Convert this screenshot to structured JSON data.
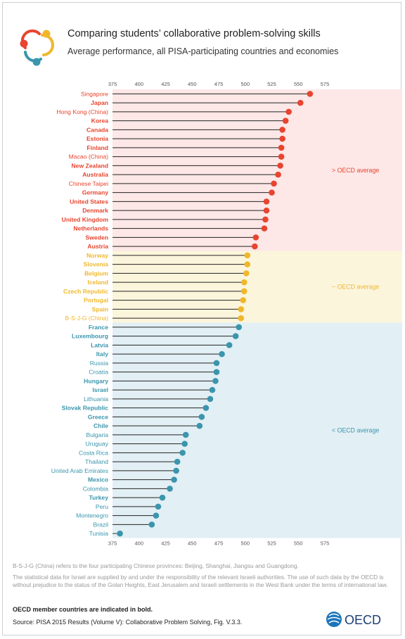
{
  "title": "Comparing students’ collaborative problem-solving skills",
  "subtitle": "Average performance, all PISA-participating countries and economies",
  "footnotes": {
    "bsjg": "B-S-J-G (China) refers to the four participating Chinese provinces: Beijing, Shanghai, Jiangsu and Guangdong.",
    "israel": "The statistical data for Israel are supplied by and under the responsibility of the relevant Israeli authorities. The use of such data by the OECD is without prejudice to the status of the Golan Heights, East Jerusalem and Israeli settlements in the West Bank under the terms of international law.",
    "oecd_members": "OECD member countries are indicated in bold.",
    "source": "Source: PISA 2015 Results (Volume V): Collaborative Problem Solving, Fig. V.3.3."
  },
  "brand": {
    "name": "OECD"
  },
  "colors": {
    "above": "#e8442f",
    "similar": "#f0b72b",
    "below": "#3a95ad",
    "above_bg": "#fde7e7",
    "similar_bg": "#fbf5dc",
    "below_bg": "#e2eff4",
    "logo_ring_1": "#e8442f",
    "logo_ring_2": "#f0b72b",
    "logo_ring_3": "#3a95ad"
  },
  "chart_data": {
    "type": "lollipop",
    "xlim": [
      375,
      575
    ],
    "xticks": [
      375,
      400,
      425,
      450,
      475,
      500,
      525,
      550,
      575
    ],
    "groups": [
      {
        "key": "above",
        "label": "> OECD average"
      },
      {
        "key": "similar",
        "label": "~ OECD average"
      },
      {
        "key": "below",
        "label": "< OECD average"
      }
    ],
    "rows": [
      {
        "name": "Singapore",
        "value": 561,
        "oecd": false,
        "group": "above"
      },
      {
        "name": "Japan",
        "value": 552,
        "oecd": true,
        "group": "above"
      },
      {
        "name": "Hong Kong (China)",
        "value": 541,
        "oecd": false,
        "group": "above"
      },
      {
        "name": "Korea",
        "value": 538,
        "oecd": true,
        "group": "above"
      },
      {
        "name": "Canada",
        "value": 535,
        "oecd": true,
        "group": "above"
      },
      {
        "name": "Estonia",
        "value": 535,
        "oecd": true,
        "group": "above"
      },
      {
        "name": "Finland",
        "value": 534,
        "oecd": true,
        "group": "above"
      },
      {
        "name": "Macao (China)",
        "value": 534,
        "oecd": false,
        "group": "above"
      },
      {
        "name": "New Zealand",
        "value": 533,
        "oecd": true,
        "group": "above"
      },
      {
        "name": "Australia",
        "value": 531,
        "oecd": true,
        "group": "above"
      },
      {
        "name": "Chinese Taipei",
        "value": 527,
        "oecd": false,
        "group": "above"
      },
      {
        "name": "Germany",
        "value": 525,
        "oecd": true,
        "group": "above"
      },
      {
        "name": "United States",
        "value": 520,
        "oecd": true,
        "group": "above"
      },
      {
        "name": "Denmark",
        "value": 520,
        "oecd": true,
        "group": "above"
      },
      {
        "name": "United Kingdom",
        "value": 519,
        "oecd": true,
        "group": "above"
      },
      {
        "name": "Netherlands",
        "value": 518,
        "oecd": true,
        "group": "above"
      },
      {
        "name": "Sweden",
        "value": 510,
        "oecd": true,
        "group": "above"
      },
      {
        "name": "Austria",
        "value": 509,
        "oecd": true,
        "group": "above"
      },
      {
        "name": "Norway",
        "value": 502,
        "oecd": true,
        "group": "similar"
      },
      {
        "name": "Slovenia",
        "value": 502,
        "oecd": true,
        "group": "similar"
      },
      {
        "name": "Belgium",
        "value": 501,
        "oecd": true,
        "group": "similar"
      },
      {
        "name": "Iceland",
        "value": 499,
        "oecd": true,
        "group": "similar"
      },
      {
        "name": "Czech Republic",
        "value": 499,
        "oecd": true,
        "group": "similar"
      },
      {
        "name": "Portugal",
        "value": 498,
        "oecd": true,
        "group": "similar"
      },
      {
        "name": "Spain",
        "value": 496,
        "oecd": true,
        "group": "similar"
      },
      {
        "name": "B-S-J-G (China)",
        "value": 496,
        "oecd": false,
        "group": "similar"
      },
      {
        "name": "France",
        "value": 494,
        "oecd": true,
        "group": "below"
      },
      {
        "name": "Luxembourg",
        "value": 491,
        "oecd": true,
        "group": "below"
      },
      {
        "name": "Latvia",
        "value": 485,
        "oecd": true,
        "group": "below"
      },
      {
        "name": "Italy",
        "value": 478,
        "oecd": true,
        "group": "below"
      },
      {
        "name": "Russia",
        "value": 473,
        "oecd": false,
        "group": "below"
      },
      {
        "name": "Croatia",
        "value": 473,
        "oecd": false,
        "group": "below"
      },
      {
        "name": "Hungary",
        "value": 472,
        "oecd": true,
        "group": "below"
      },
      {
        "name": "Israel",
        "value": 469,
        "oecd": true,
        "group": "below"
      },
      {
        "name": "Lithuania",
        "value": 467,
        "oecd": false,
        "group": "below"
      },
      {
        "name": "Slovak Republic",
        "value": 463,
        "oecd": true,
        "group": "below"
      },
      {
        "name": "Greece",
        "value": 459,
        "oecd": true,
        "group": "below"
      },
      {
        "name": "Chile",
        "value": 457,
        "oecd": true,
        "group": "below"
      },
      {
        "name": "Bulgaria",
        "value": 444,
        "oecd": false,
        "group": "below"
      },
      {
        "name": "Uruguay",
        "value": 443,
        "oecd": false,
        "group": "below"
      },
      {
        "name": "Costa Rica",
        "value": 441,
        "oecd": false,
        "group": "below"
      },
      {
        "name": "Thailand",
        "value": 436,
        "oecd": false,
        "group": "below"
      },
      {
        "name": "United Arab Emirates",
        "value": 435,
        "oecd": false,
        "group": "below"
      },
      {
        "name": "Mexico",
        "value": 433,
        "oecd": true,
        "group": "below"
      },
      {
        "name": "Colombia",
        "value": 429,
        "oecd": false,
        "group": "below"
      },
      {
        "name": "Turkey",
        "value": 422,
        "oecd": true,
        "group": "below"
      },
      {
        "name": "Peru",
        "value": 418,
        "oecd": false,
        "group": "below"
      },
      {
        "name": "Montenegro",
        "value": 416,
        "oecd": false,
        "group": "below"
      },
      {
        "name": "Brazil",
        "value": 412,
        "oecd": false,
        "group": "below"
      },
      {
        "name": "Tunisia",
        "value": 382,
        "oecd": false,
        "group": "below"
      }
    ]
  }
}
